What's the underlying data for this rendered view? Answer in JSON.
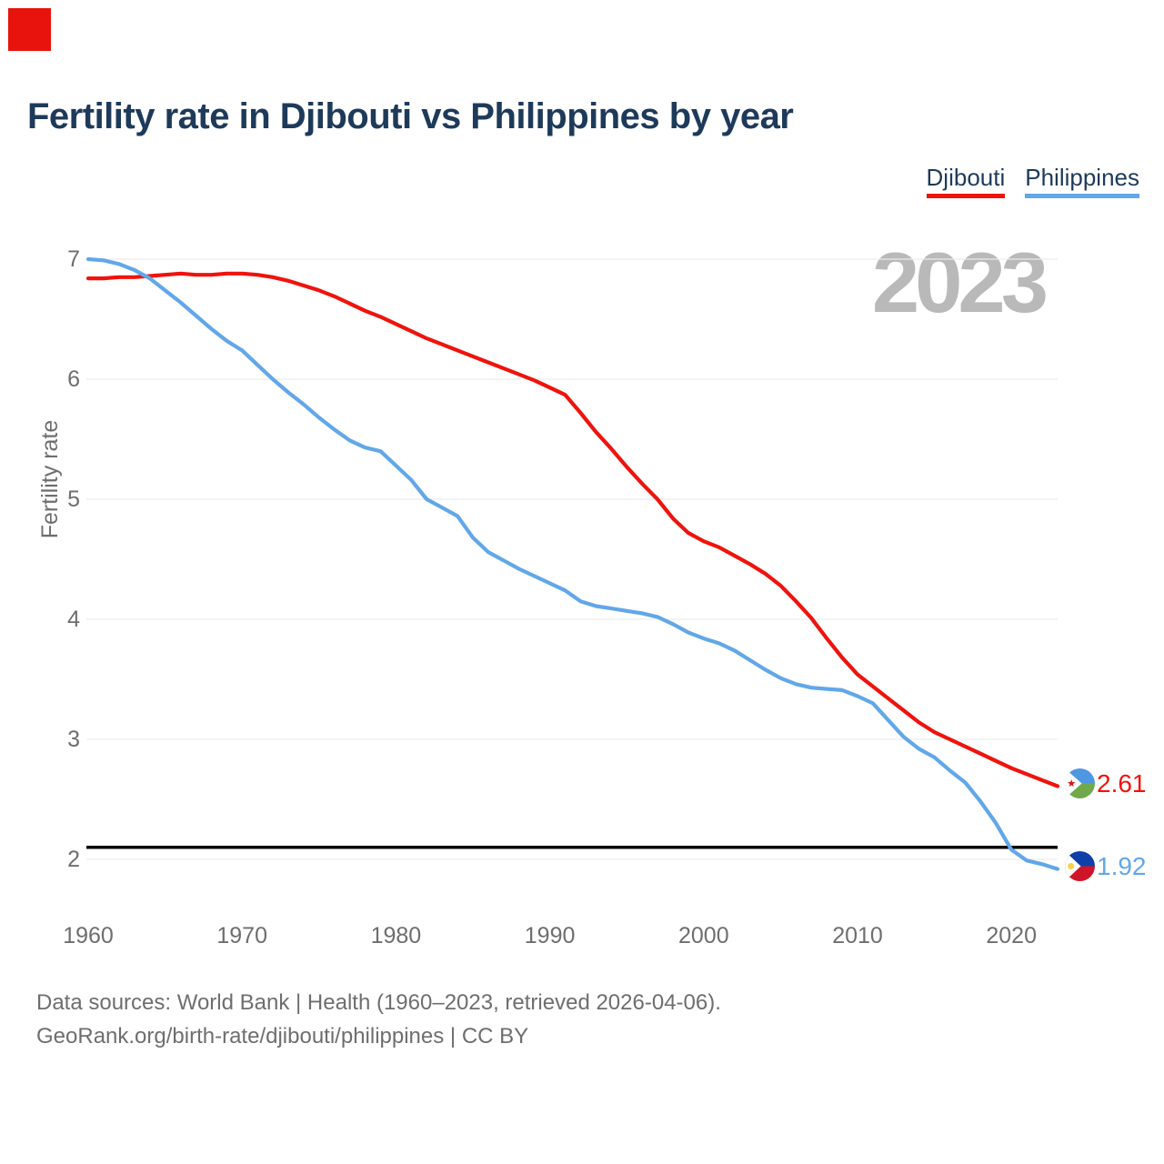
{
  "page": {
    "title": "Fertility rate in Djibouti vs Philippines by year",
    "watermark": "2023",
    "marker_color": "#e8130c",
    "background": "#ffffff",
    "title_color": "#1e3a5a"
  },
  "legend": [
    {
      "label": "Djibouti",
      "color": "#ef130e"
    },
    {
      "label": "Philippines",
      "color": "#62a7e8"
    }
  ],
  "footer": {
    "line1": "Data sources: World Bank | Health (1960–2023, retrieved 2026-04-06).",
    "line2": "GeoRank.org/birth-rate/djibouti/philippines | CC BY"
  },
  "chart_data": {
    "type": "line",
    "title": "Fertility rate in Djibouti vs Philippines by year",
    "xlabel": "",
    "ylabel": "Fertility rate",
    "legend_position": "top-right",
    "grid": "horizontal",
    "grid_color": "#ececec",
    "xlim": [
      1960,
      2023
    ],
    "ylim": [
      1.9,
      7.0
    ],
    "x_ticks": [
      1960,
      1970,
      1980,
      1990,
      2000,
      2010,
      2020
    ],
    "y_ticks": [
      7,
      6,
      5,
      4,
      3,
      2
    ],
    "reference_line": {
      "name": "replacement-level",
      "value": 2.1,
      "color": "#000000"
    },
    "years": [
      1960,
      1961,
      1962,
      1963,
      1964,
      1965,
      1966,
      1967,
      1968,
      1969,
      1970,
      1971,
      1972,
      1973,
      1974,
      1975,
      1976,
      1977,
      1978,
      1979,
      1980,
      1981,
      1982,
      1983,
      1984,
      1985,
      1986,
      1987,
      1988,
      1989,
      1990,
      1991,
      1992,
      1993,
      1994,
      1995,
      1996,
      1997,
      1998,
      1999,
      2000,
      2001,
      2002,
      2003,
      2004,
      2005,
      2006,
      2007,
      2008,
      2009,
      2010,
      2011,
      2012,
      2013,
      2014,
      2015,
      2016,
      2017,
      2018,
      2019,
      2020,
      2021,
      2022,
      2023
    ],
    "series": [
      {
        "name": "Djibouti",
        "color": "#ef130e",
        "end_label": "2.61",
        "end_value": 2.61,
        "values": [
          6.84,
          6.84,
          6.85,
          6.85,
          6.86,
          6.87,
          6.88,
          6.87,
          6.87,
          6.88,
          6.88,
          6.87,
          6.85,
          6.82,
          6.78,
          6.74,
          6.69,
          6.63,
          6.57,
          6.52,
          6.46,
          6.4,
          6.34,
          6.29,
          6.24,
          6.19,
          6.14,
          6.09,
          6.04,
          5.99,
          5.93,
          5.87,
          5.72,
          5.56,
          5.42,
          5.27,
          5.13,
          5.0,
          4.84,
          4.72,
          4.65,
          4.6,
          4.53,
          4.46,
          4.38,
          4.28,
          4.15,
          4.01,
          3.84,
          3.68,
          3.54,
          3.44,
          3.34,
          3.24,
          3.14,
          3.06,
          3.0,
          2.94,
          2.88,
          2.82,
          2.76,
          2.71,
          2.66,
          2.61
        ]
      },
      {
        "name": "Philippines",
        "color": "#62a7e8",
        "end_label": "1.92",
        "end_value": 1.92,
        "values": [
          7.0,
          6.99,
          6.96,
          6.91,
          6.84,
          6.74,
          6.64,
          6.53,
          6.42,
          6.32,
          6.24,
          6.12,
          6.0,
          5.89,
          5.79,
          5.68,
          5.58,
          5.49,
          5.43,
          5.4,
          5.28,
          5.16,
          5.0,
          4.93,
          4.86,
          4.68,
          4.56,
          4.49,
          4.42,
          4.36,
          4.3,
          4.24,
          4.15,
          4.11,
          4.09,
          4.07,
          4.05,
          4.02,
          3.96,
          3.89,
          3.84,
          3.8,
          3.74,
          3.66,
          3.58,
          3.51,
          3.46,
          3.43,
          3.42,
          3.41,
          3.36,
          3.3,
          3.16,
          3.02,
          2.92,
          2.85,
          2.74,
          2.64,
          2.48,
          2.3,
          2.08,
          1.99,
          1.96,
          1.92
        ]
      }
    ]
  }
}
